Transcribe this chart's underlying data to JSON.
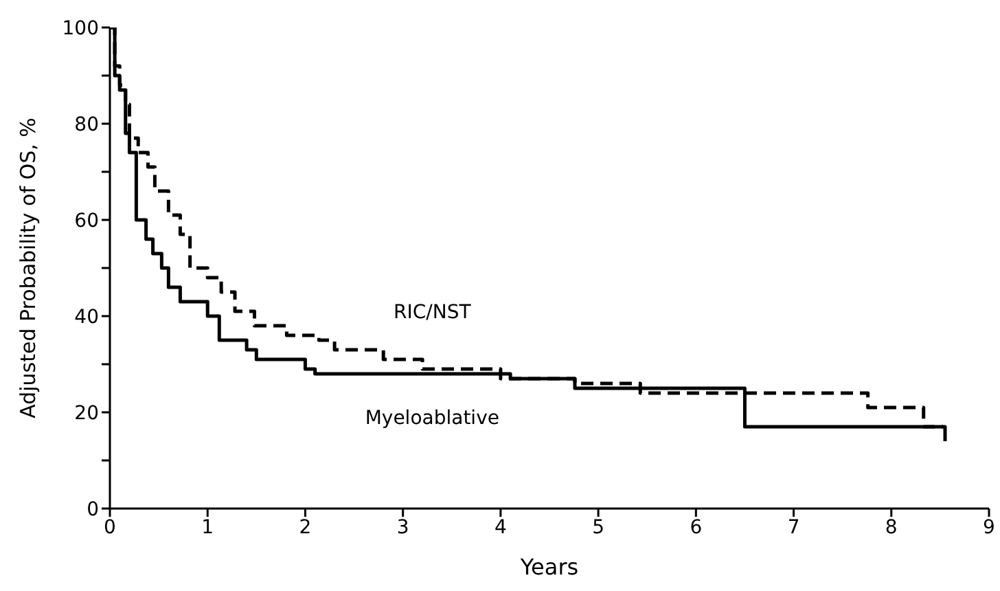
{
  "chart_data": {
    "type": "step",
    "xlabel": "Years",
    "ylabel": "Adjusted Probability of OS, %",
    "xlim": [
      0,
      9
    ],
    "xticks": [
      0,
      1,
      2,
      3,
      4,
      5,
      6,
      7,
      8,
      9
    ],
    "ylim": [
      0,
      100
    ],
    "yticks": [
      0,
      {
        "value": 10,
        "label": null
      },
      20,
      {
        "value": 30,
        "label": null
      },
      40,
      {
        "value": 50,
        "label": null
      },
      60,
      {
        "value": 70,
        "label": null
      },
      80,
      {
        "value": 90,
        "label": null
      },
      100
    ],
    "marker": "none",
    "series": [
      {
        "name": "RIC/NST",
        "color": "#000000",
        "line_style": "dashed",
        "x": [
          0,
          0.05,
          0.1,
          0.16,
          0.2,
          0.29,
          0.39,
          0.46,
          0.6,
          0.72,
          0.82,
          1.0,
          1.14,
          1.28,
          1.48,
          1.81,
          2.14,
          2.3,
          2.8,
          3.2,
          4.0,
          4.76,
          5.43,
          7.76,
          8.33,
          8.53
        ],
        "values": [
          100,
          92,
          88,
          84,
          77,
          74,
          71,
          66,
          61,
          57,
          50,
          48,
          45,
          41,
          38,
          36,
          35,
          33,
          31,
          29,
          27,
          26,
          24,
          21,
          17,
          17
        ]
      },
      {
        "name": "Myeloablative",
        "color": "#000000",
        "line_style": "solid",
        "x": [
          0,
          0.05,
          0.1,
          0.16,
          0.2,
          0.27,
          0.37,
          0.44,
          0.53,
          0.6,
          0.72,
          1.0,
          1.12,
          1.4,
          1.5,
          2.0,
          2.1,
          4.1,
          4.76,
          6.5,
          8.53,
          8.55
        ],
        "values": [
          100,
          90,
          87,
          78,
          74,
          60,
          56,
          53,
          50,
          46,
          43,
          40,
          35,
          33,
          31,
          29,
          28,
          27,
          25,
          17,
          17,
          14
        ]
      }
    ]
  }
}
